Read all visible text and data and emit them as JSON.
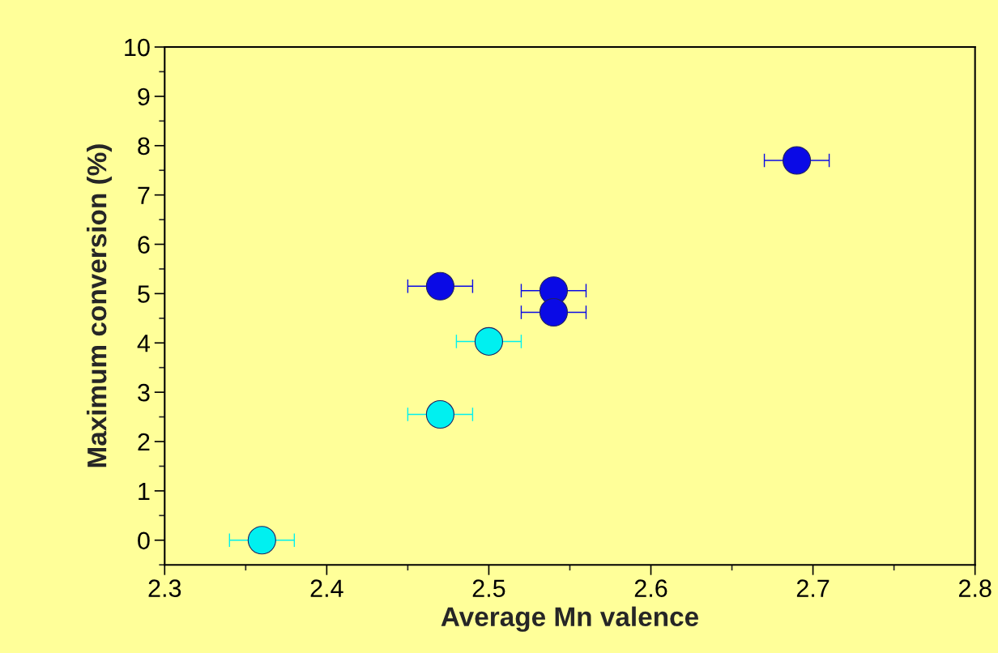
{
  "chart_data": {
    "type": "scatter",
    "xlabel": "Average Mn valence",
    "ylabel": "Maximum conversion (%)",
    "xlim": [
      2.3,
      2.8
    ],
    "xticks": [
      2.3,
      2.4,
      2.5,
      2.6,
      2.7,
      2.8
    ],
    "ylim": [
      -0.5,
      10
    ],
    "yticks": [
      0,
      1,
      2,
      3,
      4,
      5,
      6,
      7,
      8,
      9,
      10
    ],
    "grid": false,
    "marker": "circle",
    "series": [
      {
        "color": "#0a0ae6",
        "x": [
          2.69,
          2.47,
          2.54,
          2.54
        ],
        "values": [
          7.7,
          5.15,
          5.06,
          4.62
        ],
        "xerrors": [
          0.02,
          0.02,
          0.02,
          0.02
        ]
      },
      {
        "color": "#00f0f0",
        "x": [
          2.5,
          2.47,
          2.36
        ],
        "values": [
          4.03,
          2.55,
          0.0
        ],
        "xerrors": [
          0.02,
          0.02,
          0.02
        ]
      }
    ]
  }
}
